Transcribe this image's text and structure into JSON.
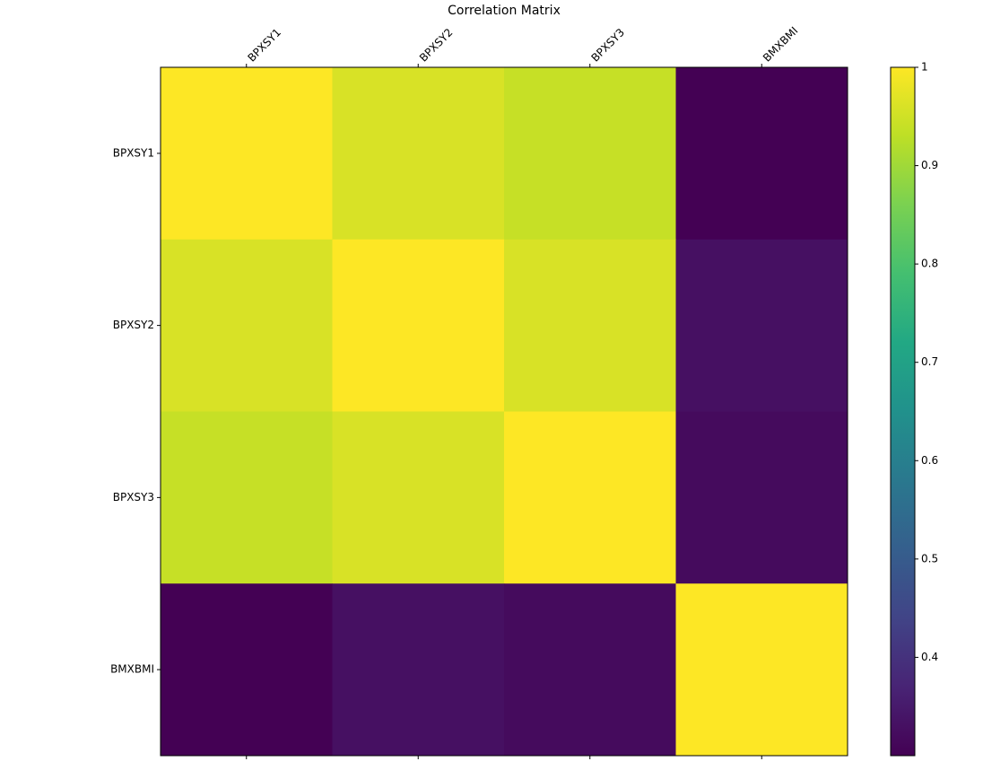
{
  "chart_data": {
    "type": "heatmap",
    "title": "Correlation Matrix",
    "categories": [
      "BPXSY1",
      "BPXSY2",
      "BPXSY3",
      "BMXBMI"
    ],
    "values": [
      [
        1.0,
        0.96,
        0.94,
        0.3
      ],
      [
        0.96,
        1.0,
        0.96,
        0.33
      ],
      [
        0.94,
        0.96,
        1.0,
        0.32
      ],
      [
        0.3,
        0.33,
        0.32,
        1.0
      ]
    ],
    "colormap": "viridis",
    "zlim": [
      0.3,
      1.0
    ],
    "zticks": [
      0.4,
      0.5,
      0.6,
      0.7,
      0.8,
      0.9,
      1.0
    ]
  }
}
